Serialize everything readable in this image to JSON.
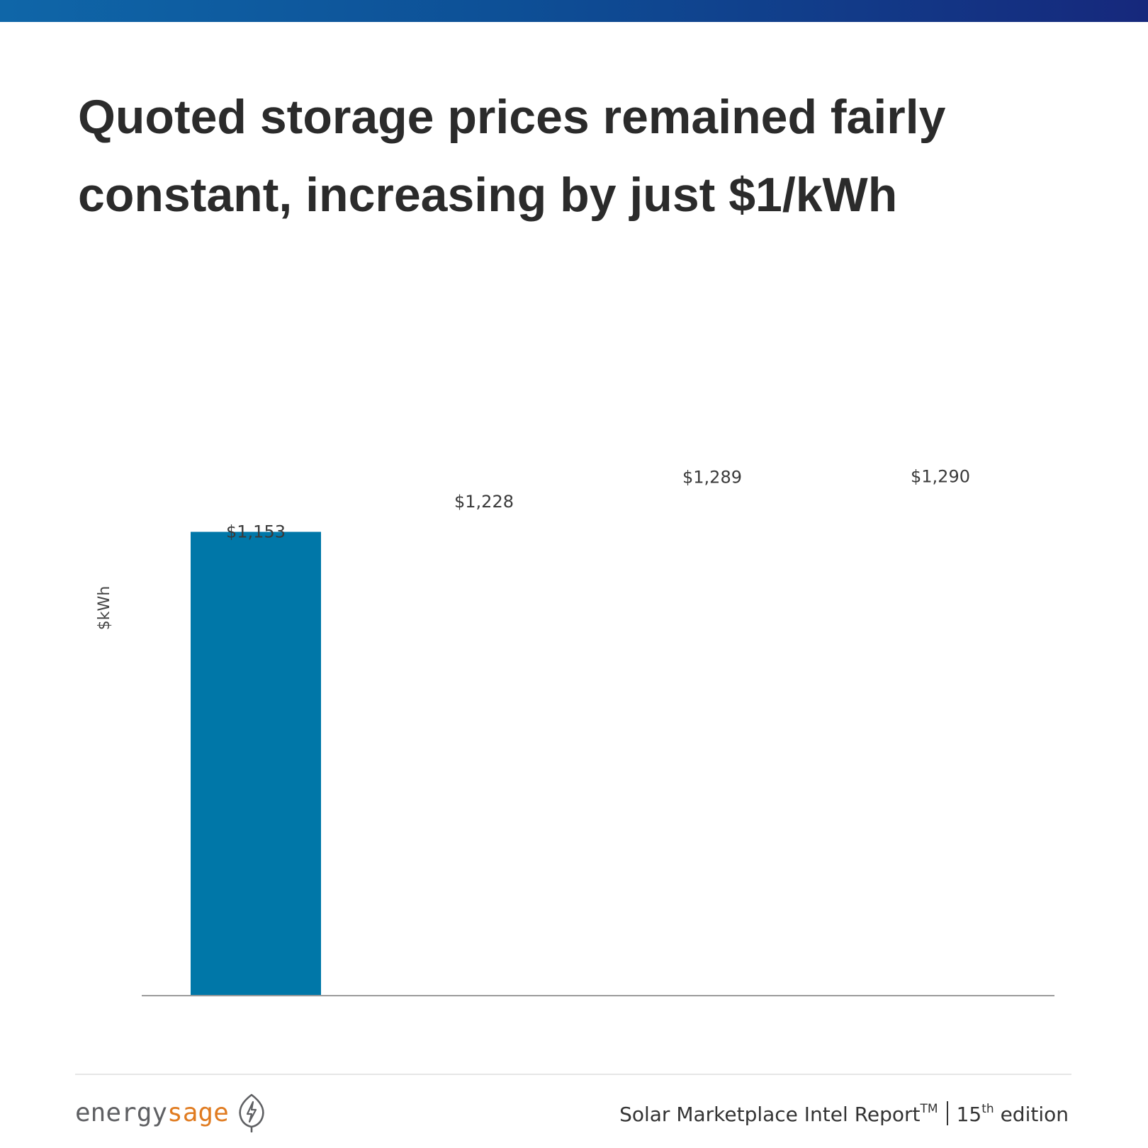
{
  "header": {
    "title": "Quoted storage prices remained fairly constant, increasing by just $1/kWh"
  },
  "chart_data": {
    "type": "bar",
    "title": "Quoted storage prices remained fairly constant, increasing by just $1/kWh",
    "xlabel": "",
    "ylabel": "$kWh",
    "categories": [
      "",
      "",
      "",
      ""
    ],
    "values": [
      1153,
      1228,
      1289,
      1290
    ],
    "data_labels": [
      "$1,153",
      "$1,228",
      "$1,289",
      "$1,290"
    ],
    "visible_bars": [
      true,
      false,
      false,
      false
    ],
    "bar_color": "#0077a8",
    "baseline_color": "#9a9a9a",
    "ylim": [
      0,
      1700
    ],
    "grid": false,
    "legend": "none"
  },
  "footer": {
    "logo_energy": "energy",
    "logo_sage": "sage",
    "report_name": "Solar Marketplace Intel Report",
    "trademark": "TM",
    "edition_number": "15",
    "edition_suffix": "th",
    "edition_word": "edition"
  },
  "colors": {
    "top_band_start": "#0f66a8",
    "top_band_end": "#16287c",
    "logo_gray": "#5f6063",
    "logo_orange": "#e07b20"
  }
}
